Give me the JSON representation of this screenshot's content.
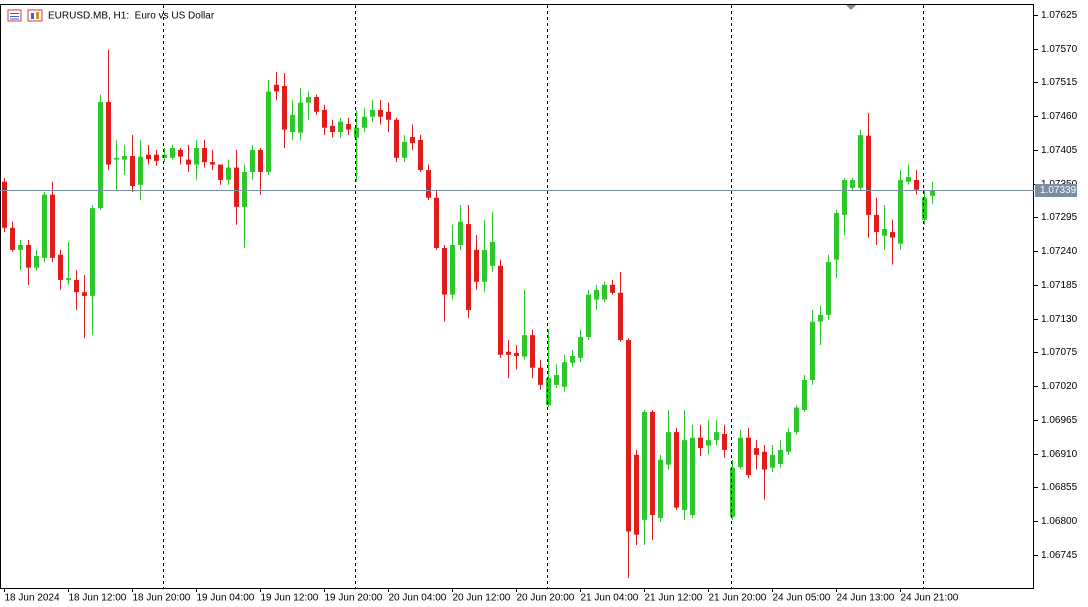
{
  "chart_data": {
    "type": "candlestick",
    "title": "EURUSD.MB, H1:  Euro vs US Dollar",
    "up_color": "#2ec82e",
    "down_color": "#e01b1b",
    "current_price": 1.07339,
    "current_price_color": "#7b8da3",
    "ylim": [
      1.06691,
      1.07641
    ],
    "yticks": [
      1.07625,
      {
        "value": 1.0757,
        "label": "1.07570"
      },
      1.07515,
      {
        "value": 1.0746,
        "label": "1.07460"
      },
      1.07405,
      {
        "value": 1.0735,
        "label": "1.07350"
      },
      1.07295,
      {
        "value": 1.0724,
        "label": "1.07240"
      },
      1.07185,
      {
        "value": 1.0713,
        "label": "1.07130"
      },
      1.07075,
      {
        "value": 1.0702,
        "label": "1.07020"
      },
      1.06965,
      {
        "value": 1.0691,
        "label": "1.06910"
      },
      1.06855,
      {
        "value": 1.068,
        "label": "1.06800"
      },
      1.06745
    ],
    "categories": [
      "18 Jun 2024",
      null,
      null,
      null,
      null,
      null,
      null,
      null,
      "18 Jun 12:00",
      null,
      null,
      null,
      null,
      null,
      null,
      null,
      "18 Jun 20:00",
      null,
      null,
      null,
      null,
      null,
      null,
      null,
      "19 Jun 04:00",
      null,
      null,
      null,
      null,
      null,
      null,
      null,
      "19 Jun 12:00",
      null,
      null,
      null,
      null,
      null,
      null,
      null,
      "19 Jun 20:00",
      null,
      null,
      null,
      null,
      null,
      null,
      null,
      "20 Jun 04:00",
      null,
      null,
      null,
      null,
      null,
      null,
      null,
      "20 Jun 12:00",
      null,
      null,
      null,
      null,
      null,
      null,
      null,
      "20 Jun 20:00",
      null,
      null,
      null,
      null,
      null,
      null,
      null,
      "21 Jun 04:00",
      null,
      null,
      null,
      null,
      null,
      null,
      null,
      "21 Jun 12:00",
      null,
      null,
      null,
      null,
      null,
      null,
      null,
      "21 Jun 20:00",
      null,
      null,
      null,
      null,
      null,
      null,
      null,
      "24 Jun 05:00",
      null,
      null,
      null,
      null,
      null,
      null,
      null,
      "24 Jun 13:00",
      null,
      null,
      null,
      null,
      null,
      null,
      null,
      "24 Jun 21:00",
      null,
      null,
      null,
      null
    ],
    "open": [
      1.07353,
      1.07278,
      1.07242,
      1.0725,
      1.07213,
      1.07229,
      1.07332,
      1.07234,
      1.07193,
      1.07193,
      1.07173,
      1.07167,
      1.0731,
      1.07483,
      1.07389,
      1.07389,
      1.07395,
      1.07348,
      1.07397,
      1.07397,
      1.07392,
      1.07392,
      1.07405,
      1.07389,
      1.07381,
      1.07408,
      1.07385,
      1.07381,
      1.07356,
      1.07376,
      1.07312,
      1.07369,
      1.07405,
      1.07369,
      1.07511,
      1.07509,
      1.07434,
      1.07433,
      1.07482,
      1.07491,
      1.0747,
      1.07444,
      1.07434,
      1.07447,
      1.07425,
      1.07441,
      1.07459,
      1.0747,
      1.07467,
      1.07454,
      1.07392,
      1.07426,
      1.07421,
      1.07372,
      1.07327,
      1.07245,
      1.07169,
      1.0725,
      1.07284,
      1.07242,
      1.0719,
      1.07216,
      1.07216,
      1.07076,
      1.07074,
      1.07068,
      1.07103,
      1.0705,
      1.06989,
      1.07022,
      1.07019,
      1.07058,
      1.07066,
      1.071,
      1.07161,
      1.07161,
      1.07185,
      1.07172,
      1.07095,
      1.06908,
      1.06802,
      1.06978,
      1.06805,
      1.06892,
      1.06945,
      1.06818,
      1.0681,
      1.06936,
      1.06923,
      1.06932,
      1.06942,
      1.06807,
      1.06888,
      1.06936,
      1.06919,
      1.06913,
      1.06887,
      1.06893,
      1.06913,
      1.06945,
      1.06981,
      1.0703,
      1.07125,
      1.07136,
      1.07226,
      1.07299,
      1.07343,
      1.07343,
      1.07428,
      1.07299,
      1.07265,
      1.07271,
      1.07252,
      1.07353,
      1.07356,
      1.07291,
      1.0733
    ],
    "high": [
      1.07359,
      1.07288,
      1.07258,
      1.07258,
      1.07242,
      1.07336,
      1.07353,
      1.07242,
      1.07255,
      1.07209,
      1.07201,
      1.07315,
      1.07495,
      1.07568,
      1.07421,
      1.07413,
      1.07429,
      1.07421,
      1.07413,
      1.07405,
      1.07408,
      1.07413,
      1.07408,
      1.07413,
      1.07421,
      1.07421,
      1.07405,
      1.07381,
      1.07389,
      1.07405,
      1.07381,
      1.07413,
      1.07408,
      1.07519,
      1.07532,
      1.0753,
      1.07486,
      1.07506,
      1.075,
      1.07495,
      1.07478,
      1.07454,
      1.07457,
      1.07457,
      1.0747,
      1.07473,
      1.07486,
      1.07486,
      1.07482,
      1.07457,
      1.07429,
      1.07446,
      1.07429,
      1.07381,
      1.0734,
      1.0725,
      1.07283,
      1.07315,
      1.07315,
      1.07266,
      1.07291,
      1.07304,
      1.07226,
      1.07095,
      1.07087,
      1.07177,
      1.07112,
      1.07063,
      1.07112,
      1.07055,
      1.07071,
      1.07079,
      1.07112,
      1.07177,
      1.07185,
      1.0719,
      1.07193,
      1.07206,
      1.07098,
      1.06916,
      1.06981,
      1.06981,
      1.06908,
      1.06981,
      1.06952,
      1.06981,
      1.06957,
      1.06957,
      1.06965,
      1.06965,
      1.06957,
      1.069,
      1.06949,
      1.06952,
      1.06932,
      1.06924,
      1.06924,
      1.06932,
      1.06952,
      1.06989,
      1.07038,
      1.07144,
      1.07152,
      1.07234,
      1.07307,
      1.07359,
      1.07359,
      1.07438,
      1.07465,
      1.07327,
      1.07315,
      1.07291,
      1.07372,
      1.07381,
      1.07372,
      1.0734,
      1.07353
    ],
    "low": [
      1.07271,
      1.07239,
      1.07209,
      1.07185,
      1.07209,
      1.07222,
      1.07222,
      1.07177,
      1.07185,
      1.07144,
      1.07098,
      1.07103,
      1.07307,
      1.07372,
      1.0734,
      1.07364,
      1.07336,
      1.07323,
      1.07381,
      1.07379,
      1.07385,
      1.07389,
      1.07381,
      1.07369,
      1.07356,
      1.07376,
      1.07372,
      1.07348,
      1.07348,
      1.07283,
      1.07245,
      1.07356,
      1.07332,
      1.07364,
      1.07486,
      1.07408,
      1.07421,
      1.07421,
      1.07454,
      1.07462,
      1.07429,
      1.07425,
      1.07425,
      1.07429,
      1.07353,
      1.07434,
      1.07451,
      1.07446,
      1.07434,
      1.07385,
      1.07385,
      1.07405,
      1.07369,
      1.07323,
      1.07242,
      1.07125,
      1.07161,
      1.07242,
      1.07131,
      1.07177,
      1.07173,
      1.07206,
      1.07066,
      1.07033,
      1.07047,
      1.07063,
      1.07033,
      1.07014,
      1.06986,
      1.07017,
      1.07011,
      1.07051,
      1.07059,
      1.07095,
      1.07144,
      1.07157,
      1.07169,
      1.07092,
      1.06707,
      1.06761,
      1.06761,
      1.06769,
      1.06799,
      1.06884,
      1.06818,
      1.06802,
      1.06805,
      1.06906,
      1.06908,
      1.06924,
      1.06903,
      1.06802,
      1.06884,
      1.0687,
      1.06884,
      1.06835,
      1.0688,
      1.06887,
      1.06908,
      1.06941,
      1.06978,
      1.07022,
      1.07087,
      1.07128,
      1.07196,
      1.07266,
      1.0734,
      1.0734,
      1.07262,
      1.0725,
      1.07242,
      1.07218,
      1.07242,
      1.07348,
      1.07332,
      1.07283,
      1.07317
    ],
    "close": [
      1.07278,
      1.07242,
      1.0725,
      1.07213,
      1.07232,
      1.07332,
      1.07229,
      1.07193,
      1.07196,
      1.07173,
      1.07167,
      1.0731,
      1.07483,
      1.07381,
      1.07392,
      1.07395,
      1.07346,
      1.07394,
      1.0739,
      1.07387,
      1.07397,
      1.07408,
      1.07394,
      1.07381,
      1.07408,
      1.07385,
      1.07381,
      1.07356,
      1.07376,
      1.07312,
      1.07369,
      1.07405,
      1.07369,
      1.075,
      1.075,
      1.07438,
      1.07462,
      1.07482,
      1.07491,
      1.07467,
      1.07441,
      1.07434,
      1.07451,
      1.07438,
      1.07441,
      1.07459,
      1.0747,
      1.07459,
      1.07454,
      1.07392,
      1.07418,
      1.07416,
      1.07372,
      1.07327,
      1.07245,
      1.07169,
      1.0725,
      1.07288,
      1.07144,
      1.0719,
      1.07242,
      1.07255,
      1.07071,
      1.07071,
      1.07069,
      1.07103,
      1.0705,
      1.07022,
      1.07033,
      1.07038,
      1.07059,
      1.07069,
      1.071,
      1.07169,
      1.07177,
      1.07185,
      1.07172,
      1.07095,
      1.06783,
      1.06778,
      1.06978,
      1.0681,
      1.069,
      1.06945,
      1.06822,
      1.06932,
      1.06936,
      1.06919,
      1.06932,
      1.06945,
      1.06916,
      1.06887,
      1.06936,
      1.06875,
      1.06908,
      1.06884,
      1.06908,
      1.06916,
      1.06945,
      1.06985,
      1.0703,
      1.07125,
      1.07136,
      1.07222,
      1.07302,
      1.07356,
      1.07356,
      1.07429,
      1.07299,
      1.07271,
      1.07276,
      1.07262,
      1.07356,
      1.07361,
      1.0734,
      1.07327,
      1.07339
    ]
  }
}
